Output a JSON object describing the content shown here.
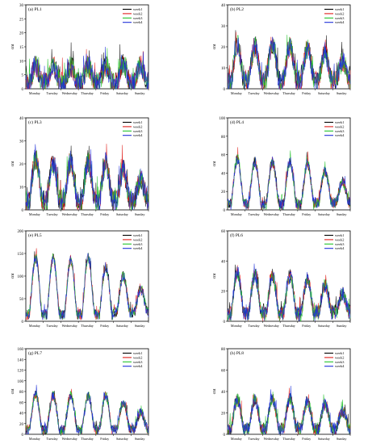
{
  "figure": {
    "y_label": "cnt",
    "day_labels": [
      "Monday",
      "Tuesday",
      "Wednesday",
      "Thursday",
      "Friday",
      "Saturday",
      "Sunday"
    ],
    "series_names": [
      "week1",
      "week2",
      "week3",
      "week4"
    ],
    "series_colors": [
      "#000000",
      "#e0201b",
      "#22c32a",
      "#1f2fd8"
    ]
  },
  "chart_data": [
    {
      "type": "line",
      "title": "(a) PL1",
      "ylabel": "cnt",
      "ylim": [
        0,
        30
      ],
      "yticks": [
        0,
        5,
        10,
        15,
        20,
        25,
        30
      ],
      "categories": [
        "Monday",
        "Tuesday",
        "Wednesday",
        "Thursday",
        "Friday",
        "Saturday",
        "Sunday"
      ],
      "legend": "top-right",
      "peak_day": [
        8,
        8,
        8,
        8,
        8,
        9,
        8
      ],
      "trough_day": [
        2,
        2,
        2,
        2,
        2,
        2,
        2
      ],
      "noise": 4,
      "series": [
        {
          "name": "week1"
        },
        {
          "name": "week2"
        },
        {
          "name": "week3"
        },
        {
          "name": "week4"
        }
      ]
    },
    {
      "type": "line",
      "title": "(b) PL2",
      "ylabel": "cnt",
      "ylim": [
        0,
        40
      ],
      "yticks": [
        0,
        10,
        20,
        30,
        40
      ],
      "categories": [
        "Monday",
        "Tuesday",
        "Wednesday",
        "Thursday",
        "Friday",
        "Saturday",
        "Sunday"
      ],
      "legend": "top-right",
      "peak_day": [
        21,
        20,
        21,
        20,
        19,
        17,
        13
      ],
      "trough_day": [
        3,
        4,
        4,
        4,
        4,
        4,
        4
      ],
      "noise": 5,
      "series": [
        {
          "name": "week1"
        },
        {
          "name": "week2"
        },
        {
          "name": "week3"
        },
        {
          "name": "week4"
        }
      ]
    },
    {
      "type": "line",
      "title": "(c) PL3",
      "ylabel": "cnt",
      "ylim": [
        0,
        40
      ],
      "yticks": [
        0,
        10,
        20,
        30,
        40
      ],
      "categories": [
        "Monday",
        "Tuesday",
        "Wednesday",
        "Thursday",
        "Friday",
        "Saturday",
        "Sunday"
      ],
      "legend": "top-right",
      "peak_day": [
        22,
        20,
        21,
        20,
        20,
        17,
        13
      ],
      "trough_day": [
        4,
        4,
        4,
        4,
        4,
        4,
        4
      ],
      "noise": 5,
      "series": [
        {
          "name": "week1"
        },
        {
          "name": "week2"
        },
        {
          "name": "week3"
        },
        {
          "name": "week4"
        }
      ]
    },
    {
      "type": "line",
      "title": "(d) PL4",
      "ylabel": "cnt",
      "ylim": [
        0,
        100
      ],
      "yticks": [
        0,
        20,
        40,
        60,
        80,
        100
      ],
      "categories": [
        "Monday",
        "Tuesday",
        "Wednesday",
        "Thursday",
        "Friday",
        "Saturday",
        "Sunday"
      ],
      "legend": "top-right",
      "peak_day": [
        55,
        52,
        52,
        52,
        50,
        42,
        30
      ],
      "trough_day": [
        6,
        6,
        6,
        6,
        6,
        8,
        8
      ],
      "noise": 6,
      "series": [
        {
          "name": "week1"
        },
        {
          "name": "week2"
        },
        {
          "name": "week3"
        },
        {
          "name": "week4"
        }
      ]
    },
    {
      "type": "line",
      "title": "(e) PL5",
      "ylabel": "cnt",
      "ylim": [
        0,
        200
      ],
      "yticks": [
        0,
        50,
        100,
        150,
        200
      ],
      "categories": [
        "Monday",
        "Tuesday",
        "Wednesday",
        "Thursday",
        "Friday",
        "Saturday",
        "Sunday"
      ],
      "legend": "top-right",
      "peak_day": [
        140,
        140,
        135,
        140,
        120,
        100,
        70
      ],
      "trough_day": [
        15,
        15,
        15,
        15,
        15,
        20,
        20
      ],
      "noise": 12,
      "series": [
        {
          "name": "week1"
        },
        {
          "name": "week2"
        },
        {
          "name": "week3"
        },
        {
          "name": "week4"
        }
      ]
    },
    {
      "type": "line",
      "title": "(f) PL6",
      "ylabel": "cnt",
      "ylim": [
        0,
        60
      ],
      "yticks": [
        0,
        20,
        40,
        60
      ],
      "categories": [
        "Monday",
        "Tuesday",
        "Wednesday",
        "Thursday",
        "Friday",
        "Saturday",
        "Sunday"
      ],
      "legend": "top-right",
      "peak_day": [
        33,
        30,
        30,
        30,
        28,
        24,
        18
      ],
      "trough_day": [
        5,
        5,
        5,
        5,
        5,
        6,
        6
      ],
      "noise": 5,
      "series": [
        {
          "name": "week1"
        },
        {
          "name": "week2"
        },
        {
          "name": "week3"
        },
        {
          "name": "week4"
        }
      ]
    },
    {
      "type": "line",
      "title": "(g) PL7",
      "ylabel": "cnt",
      "ylim": [
        0,
        160
      ],
      "yticks": [
        0,
        20,
        40,
        60,
        80,
        100,
        120,
        140,
        160
      ],
      "categories": [
        "Monday",
        "Tuesday",
        "Wednesday",
        "Thursday",
        "Friday",
        "Saturday",
        "Sunday"
      ],
      "legend": "top-right",
      "peak_day": [
        75,
        72,
        72,
        72,
        72,
        60,
        40
      ],
      "trough_day": [
        8,
        8,
        8,
        8,
        8,
        10,
        10
      ],
      "noise": 9,
      "series": [
        {
          "name": "week1"
        },
        {
          "name": "week2"
        },
        {
          "name": "week3"
        },
        {
          "name": "week4"
        }
      ]
    },
    {
      "type": "line",
      "title": "(h) PL8",
      "ylabel": "cnt",
      "ylim": [
        0,
        80
      ],
      "yticks": [
        0,
        20,
        40,
        60,
        80
      ],
      "categories": [
        "Monday",
        "Tuesday",
        "Wednesday",
        "Thursday",
        "Friday",
        "Saturday",
        "Sunday"
      ],
      "legend": "top-right",
      "peak_day": [
        32,
        32,
        33,
        33,
        30,
        28,
        22
      ],
      "trough_day": [
        5,
        5,
        5,
        5,
        5,
        5,
        5
      ],
      "noise": 6,
      "series": [
        {
          "name": "week1"
        },
        {
          "name": "week2"
        },
        {
          "name": "week3"
        },
        {
          "name": "week4"
        }
      ]
    }
  ]
}
